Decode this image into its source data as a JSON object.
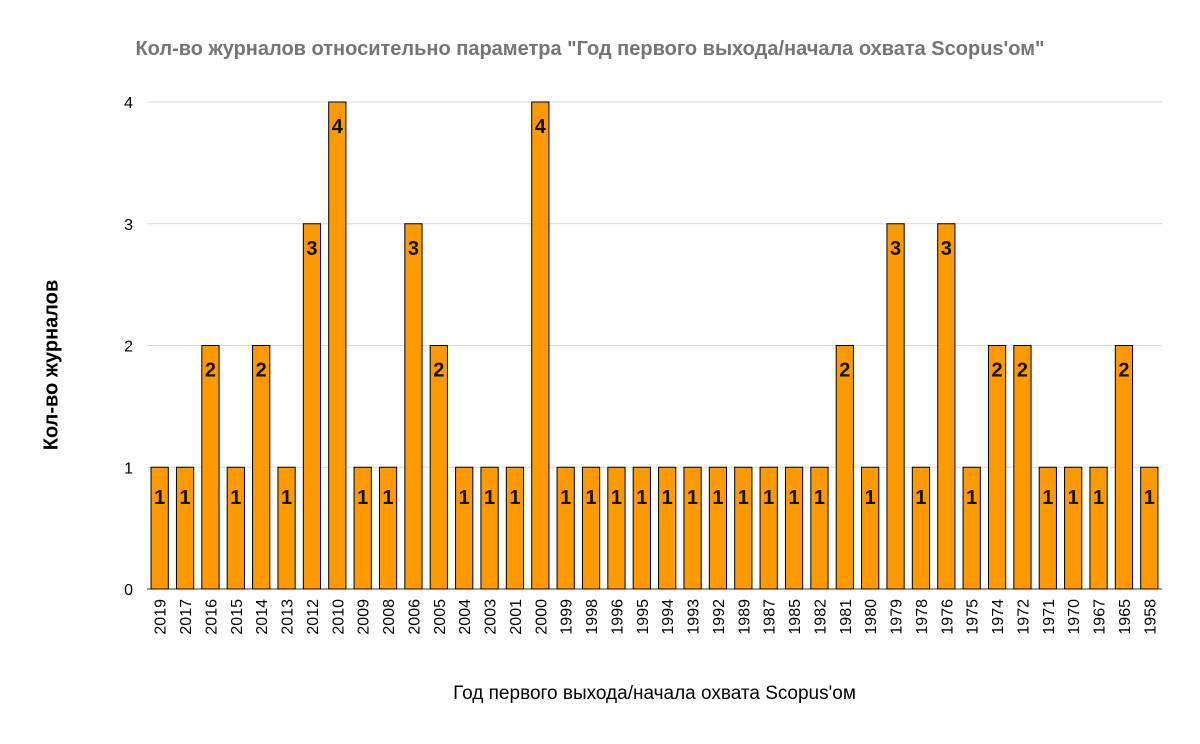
{
  "chart_data": {
    "type": "bar",
    "title": "Кол-во журналов относительно параметра \"Год первого выхода/начала охвата Scopus'ом\"",
    "xlabel": "Год первого выхода/начала охвата Scopus'ом",
    "ylabel": "Кол-во журналов",
    "ylim": [
      0,
      4
    ],
    "yticks": [
      "0",
      "1",
      "2",
      "3",
      "4"
    ],
    "grid": true,
    "legend": "none",
    "colors": {
      "bar": "#ff9900",
      "bar_edge": "#000000",
      "grid": "#d9d9d9"
    },
    "categories": [
      "2019",
      "2017",
      "2016",
      "2015",
      "2014",
      "2013",
      "2012",
      "2010",
      "2009",
      "2008",
      "2006",
      "2005",
      "2004",
      "2003",
      "2001",
      "2000",
      "1999",
      "1998",
      "1996",
      "1995",
      "1994",
      "1993",
      "1992",
      "1989",
      "1987",
      "1985",
      "1982",
      "1981",
      "1980",
      "1979",
      "1978",
      "1976",
      "1975",
      "1974",
      "1972",
      "1971",
      "1970",
      "1967",
      "1965",
      "1958"
    ],
    "values": [
      1,
      1,
      2,
      1,
      2,
      1,
      3,
      4,
      1,
      1,
      3,
      2,
      1,
      1,
      1,
      4,
      1,
      1,
      1,
      1,
      1,
      1,
      1,
      1,
      1,
      1,
      1,
      2,
      1,
      3,
      1,
      3,
      1,
      2,
      2,
      1,
      1,
      1,
      2,
      1
    ],
    "data_labels": [
      "1",
      "1",
      "2",
      "1",
      "2",
      "1",
      "3",
      "4",
      "1",
      "1",
      "3",
      "2",
      "1",
      "1",
      "1",
      "4",
      "1",
      "1",
      "1",
      "1",
      "1",
      "1",
      "1",
      "1",
      "1",
      "1",
      "1",
      "2",
      "1",
      "3",
      "1",
      "3",
      "1",
      "2",
      "2",
      "1",
      "1",
      "1",
      "2",
      "1"
    ]
  }
}
